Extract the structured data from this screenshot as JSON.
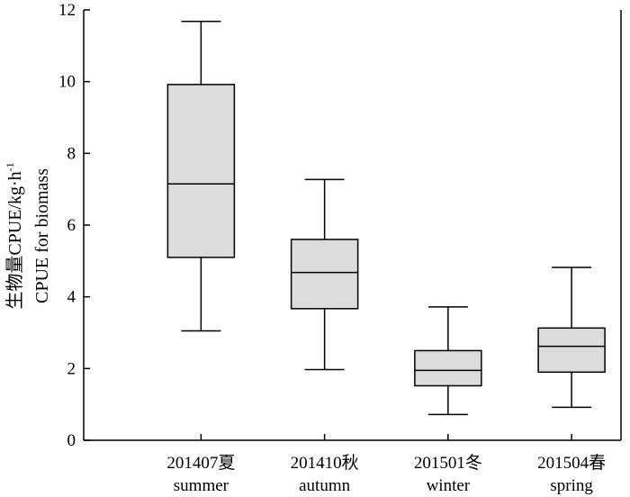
{
  "chart_data": {
    "type": "box",
    "ylabel_line1": "生物量CPUE/kg·h",
    "ylabel_sup": "-1",
    "ylabel_line2": "CPUE for biomass",
    "ylim": [
      0,
      12
    ],
    "yticks": [
      0,
      2,
      4,
      6,
      8,
      10,
      12
    ],
    "ytick_labels": [
      "0",
      "2",
      "4",
      "6",
      "8",
      "10",
      "12"
    ],
    "grid": false,
    "categories": [
      {
        "code": "201407夏",
        "season": "summer"
      },
      {
        "code": "201410秋",
        "season": "autumn"
      },
      {
        "code": "201501冬",
        "season": "winter"
      },
      {
        "code": "201504春",
        "season": "spring"
      }
    ],
    "boxes": [
      {
        "min": 3.05,
        "q1": 5.1,
        "median": 7.15,
        "q3": 9.92,
        "max": 11.68
      },
      {
        "min": 1.97,
        "q1": 3.67,
        "median": 4.68,
        "q3": 5.6,
        "max": 7.27
      },
      {
        "min": 0.72,
        "q1": 1.52,
        "median": 1.95,
        "q3": 2.5,
        "max": 3.72
      },
      {
        "min": 0.92,
        "q1": 1.9,
        "median": 2.62,
        "q3": 3.13,
        "max": 4.82
      }
    ],
    "box_fill": "#dcdcdc",
    "line_color": "#000000"
  }
}
